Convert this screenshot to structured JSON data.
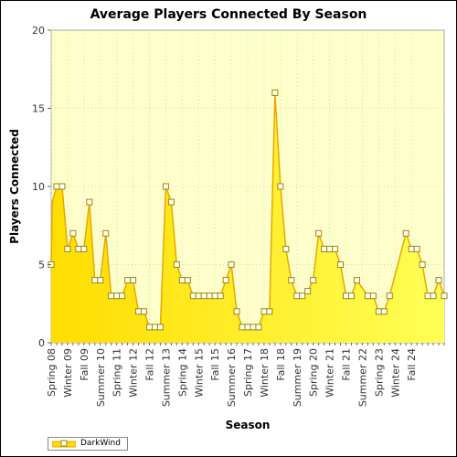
{
  "chart_data": {
    "type": "area",
    "title": "Average Players Connected By Season",
    "xlabel": "Season",
    "ylabel": "Players Connected",
    "ylim": [
      0,
      20
    ],
    "yticks": [
      0,
      5,
      10,
      15,
      20
    ],
    "grid": true,
    "legend_placement": "bottom-left",
    "colors": {
      "plot_background": "#ffffcc",
      "area_fill": "#ffdd00",
      "area_fill_light": "#ffff55",
      "line": "#e6a800",
      "marker_fill": "#ffffff",
      "marker_stroke": "#998800",
      "grid": "#d8d8b0"
    },
    "x_tick_labels": [
      "Spring 08",
      "Winter 09",
      "Fall 09",
      "Summer 10",
      "Spring 11",
      "Winter 12",
      "Fall 12",
      "Summer 13",
      "Spring 14",
      "Winter 15",
      "Fall 15",
      "Summer 16",
      "Spring 17",
      "Winter 18",
      "Fall 18",
      "Summer 19",
      "Spring 20",
      "Winter 21",
      "Fall 21",
      "Summer 22",
      "Spring 23",
      "Winter 24",
      "Fall 24"
    ],
    "series": [
      {
        "name": "DarkWind",
        "x": [
          0,
          0.1,
          0.5,
          1,
          1.5,
          2,
          2.5,
          3,
          3.5,
          4,
          4.5,
          5,
          5.5,
          6,
          6.5,
          7,
          7.5,
          8,
          8.5,
          9,
          9.5,
          10,
          10.5,
          11,
          11.5,
          12,
          12.5,
          13,
          13.5,
          14,
          14.5,
          15,
          15.5,
          16,
          16.5,
          17,
          17.5,
          18,
          18.5,
          19,
          19.5,
          20,
          20.5,
          21,
          21.5,
          22,
          22.5,
          23,
          23.5,
          24,
          24.5,
          25,
          25.5,
          26,
          26.5,
          27,
          27.5,
          28,
          29,
          29.5,
          30,
          30.5,
          31,
          32.5,
          33,
          33.5,
          34,
          34.5,
          35,
          35.5,
          36
        ],
        "values": [
          5,
          9,
          10,
          10,
          6,
          7,
          6,
          6,
          9,
          4,
          4,
          7,
          3,
          3,
          3,
          4,
          4,
          2,
          2,
          1,
          1,
          1,
          10,
          9,
          5,
          4,
          4,
          3,
          3,
          3,
          3,
          3,
          3,
          4,
          5,
          2,
          1,
          1,
          1,
          1,
          2,
          2,
          16,
          10,
          6,
          4,
          3,
          3,
          3.3,
          4,
          7,
          6,
          6,
          6,
          5,
          3,
          3,
          4,
          3,
          3,
          2,
          2,
          3,
          7,
          6,
          6,
          5,
          3,
          3,
          4,
          3
        ]
      }
    ]
  }
}
